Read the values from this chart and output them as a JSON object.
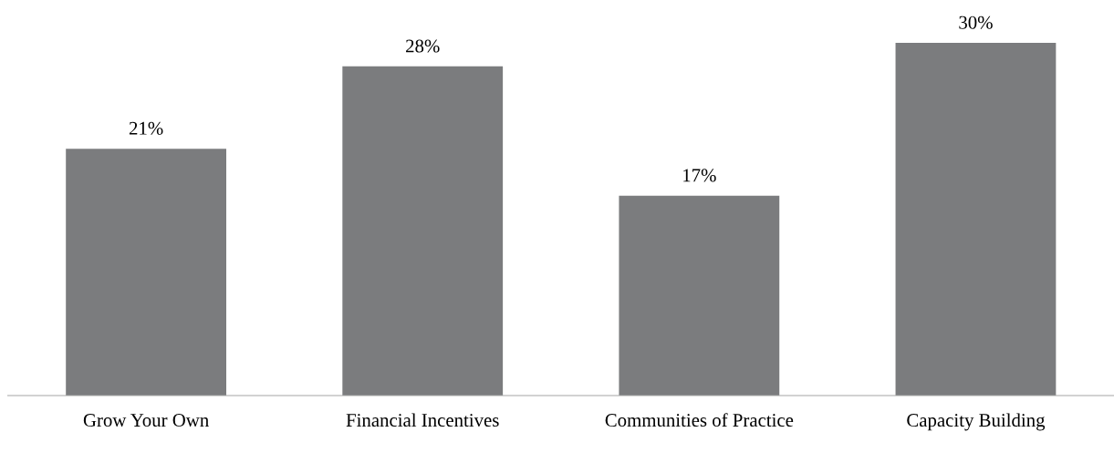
{
  "chart_data": {
    "type": "bar",
    "categories": [
      "Grow Your Own",
      "Financial Incentives",
      "Communities of Practice",
      "Capacity Building"
    ],
    "values": [
      21,
      28,
      17,
      30
    ],
    "value_labels": [
      "21%",
      "28%",
      "17%",
      "30%"
    ],
    "color": "#7b7c7e",
    "grid": false,
    "legend": false
  }
}
